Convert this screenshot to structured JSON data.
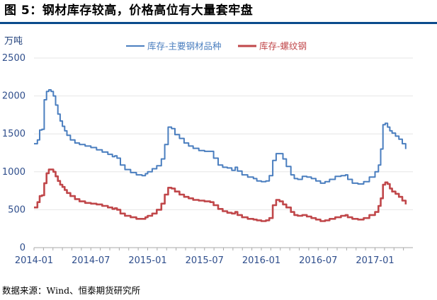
{
  "figure": {
    "title": "图 5：钢材库存较高，价格高位有大量套牢盘",
    "source": "数据来源：Wind、恒泰期货研究所"
  },
  "colors": {
    "series1": "#4a7ebf",
    "series2": "#c0474a",
    "axis": "#aaaaaa",
    "grid": "#e6e6e6",
    "title_rule": "#0a4a8c"
  },
  "chart_data": {
    "type": "line",
    "title": "",
    "ylabel": "万吨",
    "xlabel": "",
    "ylim": [
      0,
      2500
    ],
    "yticks": [
      0,
      500,
      1000,
      1500,
      2000,
      2500
    ],
    "xlim": [
      2014.0,
      2017.3333
    ],
    "xticks": [
      {
        "x": 2014.0,
        "label": "2014-01"
      },
      {
        "x": 2014.5,
        "label": "2014-07"
      },
      {
        "x": 2015.0,
        "label": "2015-01"
      },
      {
        "x": 2015.5,
        "label": "2015-07"
      },
      {
        "x": 2016.0,
        "label": "2016-01"
      },
      {
        "x": 2016.5,
        "label": "2016-07"
      },
      {
        "x": 2017.0,
        "label": "2017-01"
      }
    ],
    "grid": true,
    "legend": "top",
    "series": [
      {
        "name": "库存-主要钢材品种",
        "color": "#4a7ebf",
        "points": [
          [
            2014.0,
            1370
          ],
          [
            2014.03,
            1420
          ],
          [
            2014.05,
            1550
          ],
          [
            2014.07,
            1560
          ],
          [
            2014.09,
            1950
          ],
          [
            2014.11,
            2060
          ],
          [
            2014.13,
            2080
          ],
          [
            2014.15,
            2060
          ],
          [
            2014.17,
            2000
          ],
          [
            2014.19,
            1880
          ],
          [
            2014.21,
            1760
          ],
          [
            2014.23,
            1670
          ],
          [
            2014.25,
            1600
          ],
          [
            2014.27,
            1540
          ],
          [
            2014.29,
            1480
          ],
          [
            2014.32,
            1420
          ],
          [
            2014.36,
            1380
          ],
          [
            2014.4,
            1360
          ],
          [
            2014.45,
            1340
          ],
          [
            2014.5,
            1320
          ],
          [
            2014.55,
            1290
          ],
          [
            2014.6,
            1260
          ],
          [
            2014.65,
            1230
          ],
          [
            2014.69,
            1200
          ],
          [
            2014.71,
            1210
          ],
          [
            2014.73,
            1180
          ],
          [
            2014.76,
            1090
          ],
          [
            2014.8,
            1030
          ],
          [
            2014.85,
            990
          ],
          [
            2014.9,
            960
          ],
          [
            2014.95,
            950
          ],
          [
            2014.98,
            975
          ],
          [
            2015.0,
            1000
          ],
          [
            2015.04,
            1040
          ],
          [
            2015.08,
            1080
          ],
          [
            2015.12,
            1170
          ],
          [
            2015.15,
            1360
          ],
          [
            2015.18,
            1590
          ],
          [
            2015.21,
            1570
          ],
          [
            2015.24,
            1490
          ],
          [
            2015.28,
            1440
          ],
          [
            2015.32,
            1380
          ],
          [
            2015.36,
            1340
          ],
          [
            2015.4,
            1310
          ],
          [
            2015.45,
            1280
          ],
          [
            2015.5,
            1270
          ],
          [
            2015.55,
            1270
          ],
          [
            2015.58,
            1180
          ],
          [
            2015.62,
            1090
          ],
          [
            2015.66,
            1060
          ],
          [
            2015.7,
            1050
          ],
          [
            2015.74,
            1020
          ],
          [
            2015.77,
            1060
          ],
          [
            2015.79,
            1010
          ],
          [
            2015.83,
            960
          ],
          [
            2015.88,
            930
          ],
          [
            2015.93,
            910
          ],
          [
            2015.96,
            880
          ],
          [
            2016.0,
            870
          ],
          [
            2016.04,
            880
          ],
          [
            2016.07,
            950
          ],
          [
            2016.1,
            1150
          ],
          [
            2016.13,
            1240
          ],
          [
            2016.16,
            1240
          ],
          [
            2016.19,
            1170
          ],
          [
            2016.22,
            1070
          ],
          [
            2016.26,
            960
          ],
          [
            2016.29,
            910
          ],
          [
            2016.32,
            900
          ],
          [
            2016.36,
            940
          ],
          [
            2016.4,
            930
          ],
          [
            2016.44,
            910
          ],
          [
            2016.48,
            880
          ],
          [
            2016.52,
            850
          ],
          [
            2016.56,
            870
          ],
          [
            2016.6,
            900
          ],
          [
            2016.65,
            940
          ],
          [
            2016.7,
            950
          ],
          [
            2016.74,
            960
          ],
          [
            2016.76,
            900
          ],
          [
            2016.8,
            850
          ],
          [
            2016.85,
            840
          ],
          [
            2016.9,
            870
          ],
          [
            2016.95,
            930
          ],
          [
            2017.0,
            1000
          ],
          [
            2017.03,
            1090
          ],
          [
            2017.05,
            1300
          ],
          [
            2017.07,
            1620
          ],
          [
            2017.09,
            1640
          ],
          [
            2017.11,
            1590
          ],
          [
            2017.13,
            1540
          ],
          [
            2017.15,
            1510
          ],
          [
            2017.18,
            1470
          ],
          [
            2017.21,
            1430
          ],
          [
            2017.24,
            1370
          ],
          [
            2017.27,
            1300
          ]
        ]
      },
      {
        "name": "库存-螺纹钢",
        "color": "#c0474a",
        "points": [
          [
            2014.0,
            530
          ],
          [
            2014.03,
            600
          ],
          [
            2014.05,
            680
          ],
          [
            2014.07,
            690
          ],
          [
            2014.09,
            850
          ],
          [
            2014.11,
            980
          ],
          [
            2014.13,
            1030
          ],
          [
            2014.15,
            1030
          ],
          [
            2014.17,
            1000
          ],
          [
            2014.19,
            940
          ],
          [
            2014.21,
            880
          ],
          [
            2014.23,
            830
          ],
          [
            2014.25,
            800
          ],
          [
            2014.27,
            760
          ],
          [
            2014.29,
            720
          ],
          [
            2014.32,
            680
          ],
          [
            2014.36,
            640
          ],
          [
            2014.4,
            610
          ],
          [
            2014.45,
            590
          ],
          [
            2014.5,
            580
          ],
          [
            2014.55,
            570
          ],
          [
            2014.6,
            550
          ],
          [
            2014.65,
            530
          ],
          [
            2014.69,
            510
          ],
          [
            2014.71,
            520
          ],
          [
            2014.73,
            500
          ],
          [
            2014.76,
            450
          ],
          [
            2014.8,
            420
          ],
          [
            2014.85,
            400
          ],
          [
            2014.9,
            380
          ],
          [
            2014.95,
            380
          ],
          [
            2014.98,
            400
          ],
          [
            2015.0,
            420
          ],
          [
            2015.04,
            450
          ],
          [
            2015.08,
            500
          ],
          [
            2015.12,
            580
          ],
          [
            2015.15,
            700
          ],
          [
            2015.18,
            790
          ],
          [
            2015.21,
            780
          ],
          [
            2015.24,
            740
          ],
          [
            2015.28,
            700
          ],
          [
            2015.32,
            670
          ],
          [
            2015.36,
            650
          ],
          [
            2015.4,
            630
          ],
          [
            2015.45,
            620
          ],
          [
            2015.5,
            610
          ],
          [
            2015.55,
            600
          ],
          [
            2015.58,
            560
          ],
          [
            2015.62,
            510
          ],
          [
            2015.66,
            480
          ],
          [
            2015.7,
            460
          ],
          [
            2015.74,
            450
          ],
          [
            2015.77,
            470
          ],
          [
            2015.79,
            430
          ],
          [
            2015.83,
            400
          ],
          [
            2015.88,
            380
          ],
          [
            2015.93,
            370
          ],
          [
            2015.96,
            360
          ],
          [
            2016.0,
            350
          ],
          [
            2016.04,
            360
          ],
          [
            2016.07,
            390
          ],
          [
            2016.1,
            560
          ],
          [
            2016.13,
            630
          ],
          [
            2016.16,
            610
          ],
          [
            2016.19,
            570
          ],
          [
            2016.22,
            530
          ],
          [
            2016.26,
            470
          ],
          [
            2016.29,
            430
          ],
          [
            2016.32,
            420
          ],
          [
            2016.36,
            430
          ],
          [
            2016.4,
            410
          ],
          [
            2016.44,
            390
          ],
          [
            2016.48,
            370
          ],
          [
            2016.52,
            350
          ],
          [
            2016.56,
            360
          ],
          [
            2016.6,
            380
          ],
          [
            2016.65,
            400
          ],
          [
            2016.7,
            420
          ],
          [
            2016.74,
            430
          ],
          [
            2016.76,
            400
          ],
          [
            2016.8,
            380
          ],
          [
            2016.85,
            370
          ],
          [
            2016.9,
            390
          ],
          [
            2016.95,
            430
          ],
          [
            2017.0,
            470
          ],
          [
            2017.03,
            550
          ],
          [
            2017.05,
            650
          ],
          [
            2017.07,
            830
          ],
          [
            2017.09,
            860
          ],
          [
            2017.11,
            840
          ],
          [
            2017.13,
            780
          ],
          [
            2017.15,
            740
          ],
          [
            2017.18,
            710
          ],
          [
            2017.21,
            670
          ],
          [
            2017.24,
            620
          ],
          [
            2017.27,
            570
          ]
        ]
      }
    ]
  }
}
